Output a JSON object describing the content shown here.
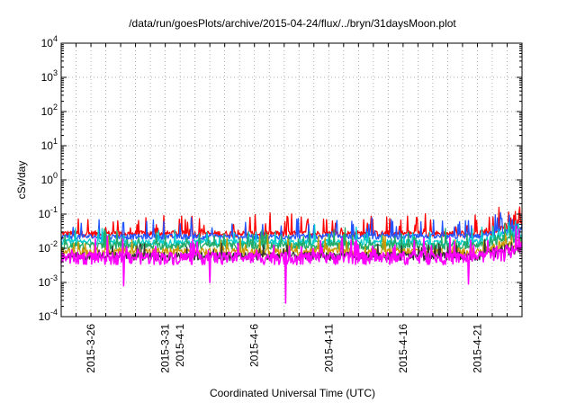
{
  "chart_data": {
    "type": "line",
    "title": "/data/run/goesPlots/archive/2015-04-24/flux/../bryn/31daysMoon.plot",
    "xlabel": "Coordinated Universal Time (UTC)",
    "ylabel": "cSv/day",
    "y_scale": "log",
    "ylim": [
      0.0001,
      10000
    ],
    "y_ticks": [
      {
        "value": 0.0001,
        "base": "10",
        "exp": "-4"
      },
      {
        "value": 0.001,
        "base": "10",
        "exp": "-3"
      },
      {
        "value": 0.01,
        "base": "10",
        "exp": "-2"
      },
      {
        "value": 0.1,
        "base": "10",
        "exp": "-1"
      },
      {
        "value": 1,
        "base": "10",
        "exp": "0"
      },
      {
        "value": 10,
        "base": "10",
        "exp": "1"
      },
      {
        "value": 100,
        "base": "10",
        "exp": "2"
      },
      {
        "value": 1000,
        "base": "10",
        "exp": "3"
      },
      {
        "value": 10000,
        "base": "10",
        "exp": "4"
      }
    ],
    "xlim": [
      "2015-03-24",
      "2015-04-24"
    ],
    "x_ticks": [
      "2015-3-26",
      "2015-3-31",
      "2015-4-1",
      "2015-4-6",
      "2015-4-11",
      "2015-4-16",
      "2015-4-21"
    ],
    "x_tick_dates": [
      "2015-03-26",
      "2015-03-31",
      "2015-04-01",
      "2015-04-06",
      "2015-04-11",
      "2015-04-16",
      "2015-04-21"
    ],
    "grid": true,
    "series": [
      {
        "color": "#ff0000",
        "baseline": 0.027,
        "spread": 0.1,
        "spike_rate": 0.12,
        "spike": 2.5
      },
      {
        "color": "#2255ff",
        "baseline": 0.022,
        "spread": 0.09,
        "spike_rate": 0.1,
        "spike": 2.2
      },
      {
        "color": "#00cccc",
        "baseline": 0.015,
        "spread": 0.1,
        "spike_rate": 0.08,
        "spike": 1.8
      },
      {
        "color": "#22aa66",
        "baseline": 0.012,
        "spread": 0.12,
        "spike_rate": 0.08,
        "spike": 1.8
      },
      {
        "color": "#cc9900",
        "baseline": 0.008,
        "spread": 0.14,
        "spike_rate": 0.06,
        "spike": 1.6
      },
      {
        "color": "#333333",
        "baseline": 0.006,
        "spread": 0.14,
        "spike_rate": 0.06,
        "spike": 1.6
      },
      {
        "color": "#ff00ff",
        "baseline": 0.0055,
        "spread": 0.2,
        "spike_rate": 0.1,
        "spike": 2.0,
        "dips": [
          {
            "date": "2015-03-28.2",
            "value": 0.0008
          },
          {
            "date": "2015-04-03.0",
            "value": 0.001
          },
          {
            "date": "2015-04-08.1",
            "value": 0.00025
          },
          {
            "date": "2015-04-20.4",
            "value": 0.0009
          }
        ]
      }
    ]
  }
}
